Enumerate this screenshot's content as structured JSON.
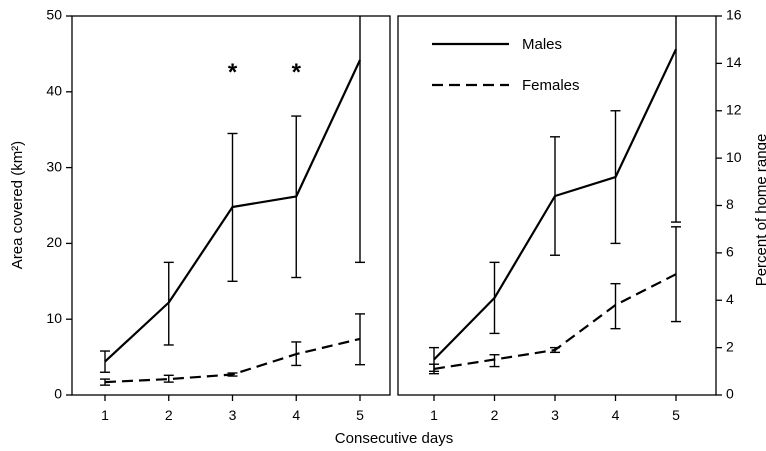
{
  "chart_data": [
    {
      "type": "line",
      "panel": "left",
      "xlabel": "Consecutive days",
      "ylabel": "Area covered (km²)",
      "ylim": [
        0,
        50
      ],
      "yticks": [
        0,
        10,
        20,
        30,
        40,
        50
      ],
      "x": [
        1,
        2,
        3,
        4,
        5
      ],
      "series": [
        {
          "name": "Males",
          "style": "solid",
          "values": [
            4.4,
            12.2,
            24.8,
            26.2,
            44.2
          ],
          "err_low": [
            3.0,
            6.6,
            15.0,
            15.5,
            17.5
          ],
          "err_high": [
            5.8,
            17.5,
            34.5,
            36.8,
            50
          ]
        },
        {
          "name": "Females",
          "style": "dashed",
          "values": [
            1.7,
            2.1,
            2.7,
            5.4,
            7.4
          ],
          "err_low": [
            1.3,
            1.7,
            2.5,
            3.9,
            4.0
          ],
          "err_high": [
            2.1,
            2.6,
            2.9,
            7.0,
            10.7
          ]
        }
      ],
      "annotations": [
        {
          "x": 3,
          "text": "*"
        },
        {
          "x": 4,
          "text": "*"
        }
      ]
    },
    {
      "type": "line",
      "panel": "right",
      "xlabel": "Consecutive days",
      "ylabel": "Percent of home range",
      "ylim": [
        0,
        16
      ],
      "yticks": [
        0,
        2,
        4,
        6,
        8,
        10,
        12,
        14,
        16
      ],
      "x": [
        1,
        2,
        3,
        4,
        5
      ],
      "legend": {
        "position": "top-left",
        "entries": [
          "Males",
          "Females"
        ]
      },
      "series": [
        {
          "name": "Males",
          "style": "solid",
          "values": [
            1.5,
            4.1,
            8.4,
            9.2,
            14.6
          ],
          "err_low": [
            1.0,
            2.6,
            5.9,
            6.4,
            7.3
          ],
          "err_high": [
            2.0,
            5.6,
            10.9,
            12.0,
            16
          ]
        },
        {
          "name": "Females",
          "style": "dashed",
          "values": [
            1.1,
            1.5,
            1.9,
            3.8,
            5.1
          ],
          "err_low": [
            0.9,
            1.2,
            1.8,
            2.8,
            3.1
          ],
          "err_high": [
            1.3,
            1.7,
            2.0,
            4.7,
            7.1
          ]
        }
      ]
    }
  ]
}
